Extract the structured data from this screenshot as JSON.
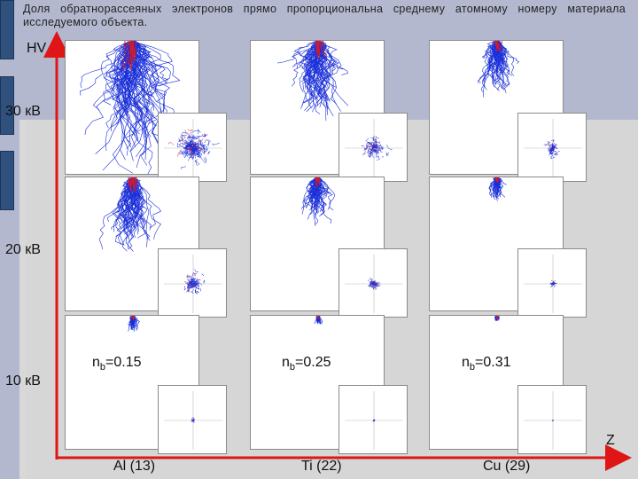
{
  "caption": "Доля обратнорассеяных электронов прямо пропорциональна среднему атомному номеру материала исследуемого объекта.",
  "axes": {
    "y_label": "HV",
    "x_label": "Z"
  },
  "voltages": [
    "30 кВ",
    "20 кВ",
    "10 кВ"
  ],
  "materials": [
    "Al (13)",
    "Ti (22)",
    "Cu (29)"
  ],
  "backscatter": [
    {
      "symbol": "n",
      "subscript": "b",
      "value": "=0.15"
    },
    {
      "symbol": "n",
      "subscript": "b",
      "value": "=0.25"
    },
    {
      "symbol": "n",
      "subscript": "b",
      "value": "=0.31"
    }
  ],
  "colors": {
    "arrow": "#e01515",
    "trajectory": "#1a2fd8",
    "backscattered": "#d81a2a",
    "band": "#b4b8cf",
    "block": "#30507e"
  },
  "simulation_relative_spread": [
    [
      1.0,
      0.62,
      0.42
    ],
    [
      0.58,
      0.36,
      0.18
    ],
    [
      0.12,
      0.07,
      0.04
    ]
  ]
}
